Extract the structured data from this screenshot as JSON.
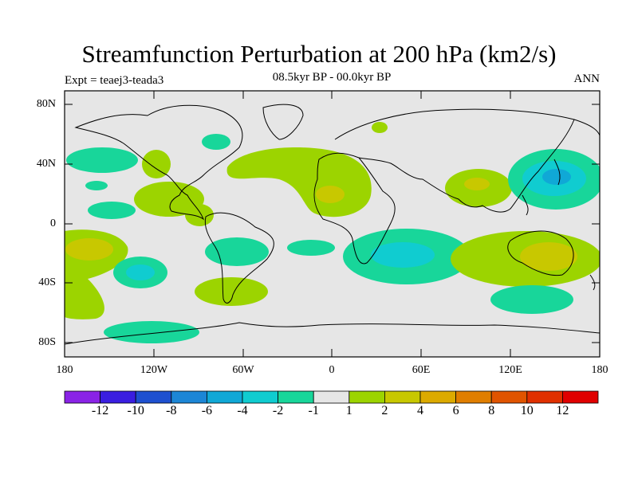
{
  "title": "Streamfunction Perturbation at 200 hPa (km2/s)",
  "experiment": "Expt = teaej3-teada3",
  "period": "08.5kyr BP - 00.0kyr BP",
  "season": "ANN",
  "map": {
    "lat_ticks": [
      "80N",
      "40N",
      "0",
      "40S",
      "80S"
    ],
    "lon_ticks": [
      "180",
      "120W",
      "60W",
      "0",
      "60E",
      "120E",
      "180"
    ],
    "background_color": "#e6e6e6"
  },
  "colorbar": {
    "labels": [
      "-12",
      "-10",
      "-8",
      "-6",
      "-4",
      "-2",
      "-1",
      "1",
      "2",
      "4",
      "6",
      "8",
      "10",
      "12"
    ],
    "colors": [
      "#8a23e6",
      "#3a1ee0",
      "#1e50d0",
      "#1c86d6",
      "#10a8d6",
      "#10ccd0",
      "#18d69a",
      "#e6e6e6",
      "#9cd400",
      "#c8c800",
      "#dcaa00",
      "#e07e00",
      "#e05400",
      "#e03000",
      "#e00000"
    ]
  }
}
